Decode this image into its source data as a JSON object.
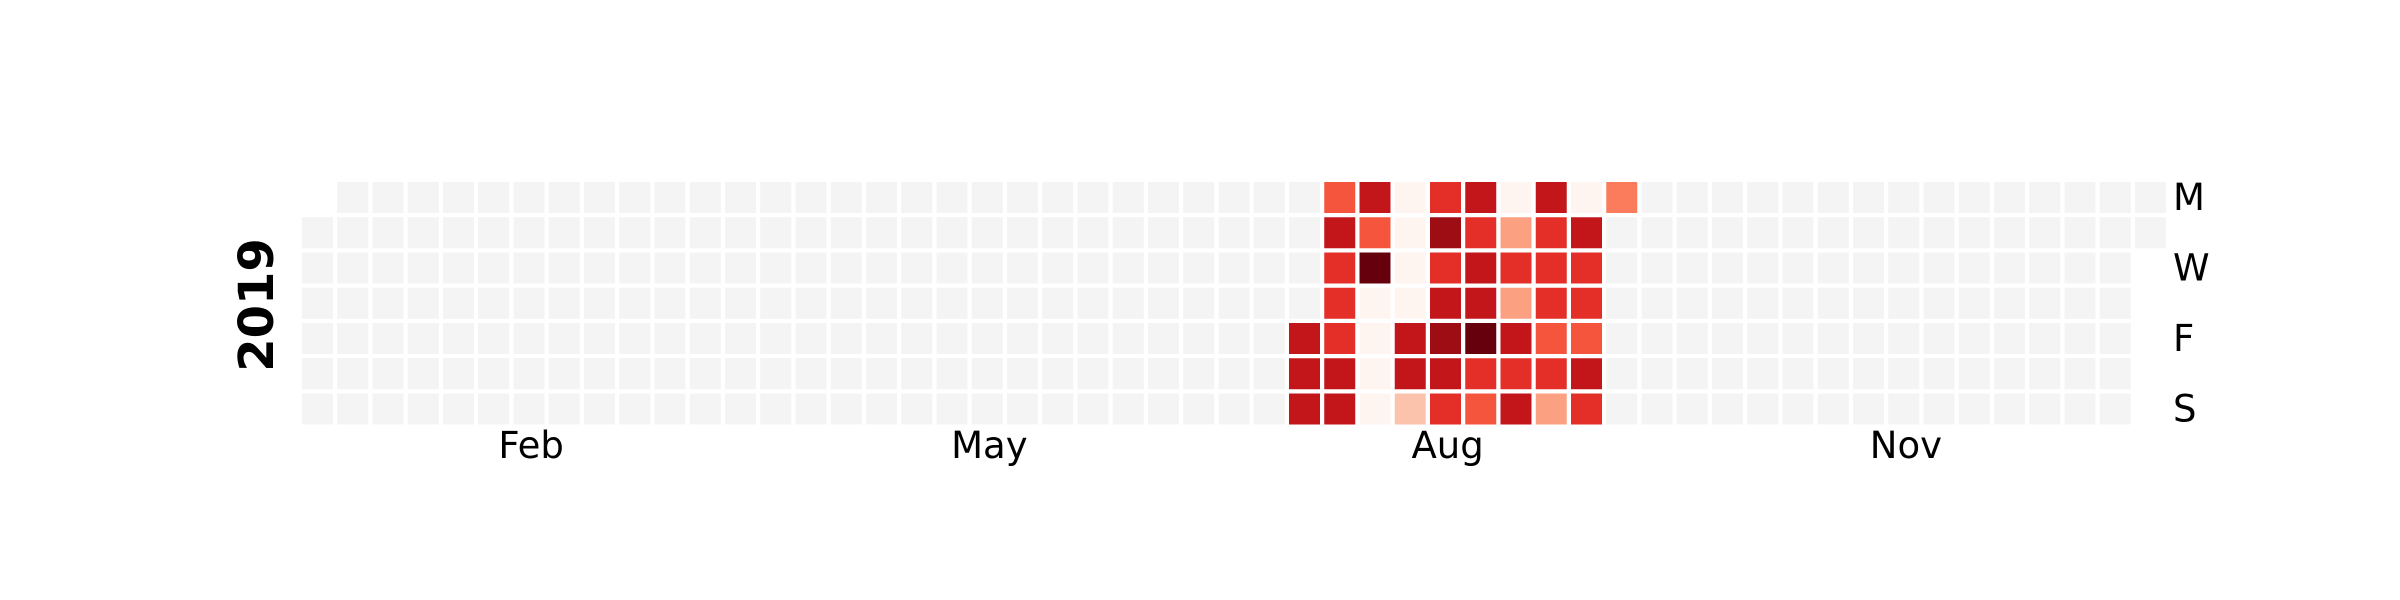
{
  "chart_data": {
    "type": "heatmap",
    "year": "2019",
    "colorscale": "Reds",
    "empty_color": "#f4f4f4",
    "value_range": [
      0,
      9
    ],
    "month_labels": [
      {
        "label": "Feb",
        "week": 6.5
      },
      {
        "label": "May",
        "week": 19.5
      },
      {
        "label": "Aug",
        "week": 32.5
      },
      {
        "label": "Nov",
        "week": 45.5
      }
    ],
    "day_labels": [
      {
        "label": "M",
        "row": 0
      },
      {
        "label": "W",
        "row": 2
      },
      {
        "label": "F",
        "row": 4
      },
      {
        "label": "S",
        "row": 6
      }
    ],
    "first_week_start_row": 1,
    "last_week_end_row": 1,
    "num_weeks": 53,
    "activity": [
      {
        "week": 28,
        "values": [
          null,
          null,
          null,
          null,
          7,
          7,
          7
        ]
      },
      {
        "week": 29,
        "values": [
          5,
          7,
          6,
          6,
          6,
          7,
          7
        ]
      },
      {
        "week": 30,
        "values": [
          7,
          5,
          9,
          0,
          0,
          0,
          0
        ]
      },
      {
        "week": 31,
        "values": [
          0,
          0,
          0,
          0,
          7,
          7,
          2
        ]
      },
      {
        "week": 32,
        "values": [
          6,
          8,
          6,
          7,
          8,
          7,
          6
        ]
      },
      {
        "week": 33,
        "values": [
          7,
          6,
          7,
          7,
          9,
          6,
          5
        ]
      },
      {
        "week": 34,
        "values": [
          0,
          3,
          6,
          3,
          7,
          6,
          7
        ]
      },
      {
        "week": 35,
        "values": [
          7,
          6,
          6,
          6,
          5,
          6,
          3
        ]
      },
      {
        "week": 36,
        "values": [
          0,
          7,
          6,
          6,
          5,
          7,
          6
        ]
      },
      {
        "week": 37,
        "values": [
          4,
          null,
          null,
          null,
          null,
          null,
          null
        ]
      }
    ]
  }
}
